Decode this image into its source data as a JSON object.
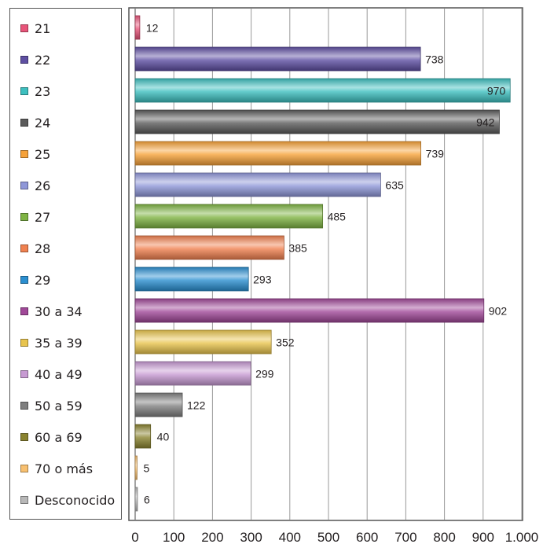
{
  "chart_data": {
    "type": "bar",
    "orientation": "horizontal",
    "categories": [
      "21",
      "22",
      "23",
      "24",
      "25",
      "26",
      "27",
      "28",
      "29",
      "30 a 34",
      "35 a 39",
      "40 a 49",
      "50 a 59",
      "60 a 69",
      "70 o más",
      "Desconocido"
    ],
    "values": [
      12,
      738,
      970,
      942,
      739,
      635,
      485,
      385,
      293,
      902,
      352,
      299,
      122,
      40,
      5,
      6
    ],
    "value_labels": [
      "12",
      "738",
      "970",
      "942",
      "739",
      "635",
      "485",
      "385",
      "293",
      "902",
      "352",
      "299",
      "122",
      "40",
      "5",
      "6"
    ],
    "colors": [
      "#e8557a",
      "#5e4fa2",
      "#3dbfbf",
      "#5b5b5b",
      "#f6a23a",
      "#8f97d8",
      "#7fb444",
      "#f08150",
      "#2b8fd0",
      "#a04898",
      "#e8c44e",
      "#c79ad2",
      "#7f7f7f",
      "#8a8330",
      "#f8c070",
      "#b8b8b8"
    ],
    "xlim": [
      0,
      1000
    ],
    "x_ticks": [
      "0",
      "100",
      "200",
      "300",
      "400",
      "500",
      "600",
      "700",
      "800",
      "900",
      "1.000"
    ],
    "x_tick_values": [
      0,
      100,
      200,
      300,
      400,
      500,
      600,
      700,
      800,
      900,
      1000
    ],
    "legend_position": "left",
    "grid": "vertical",
    "xlabel": "",
    "ylabel": "",
    "title": ""
  }
}
